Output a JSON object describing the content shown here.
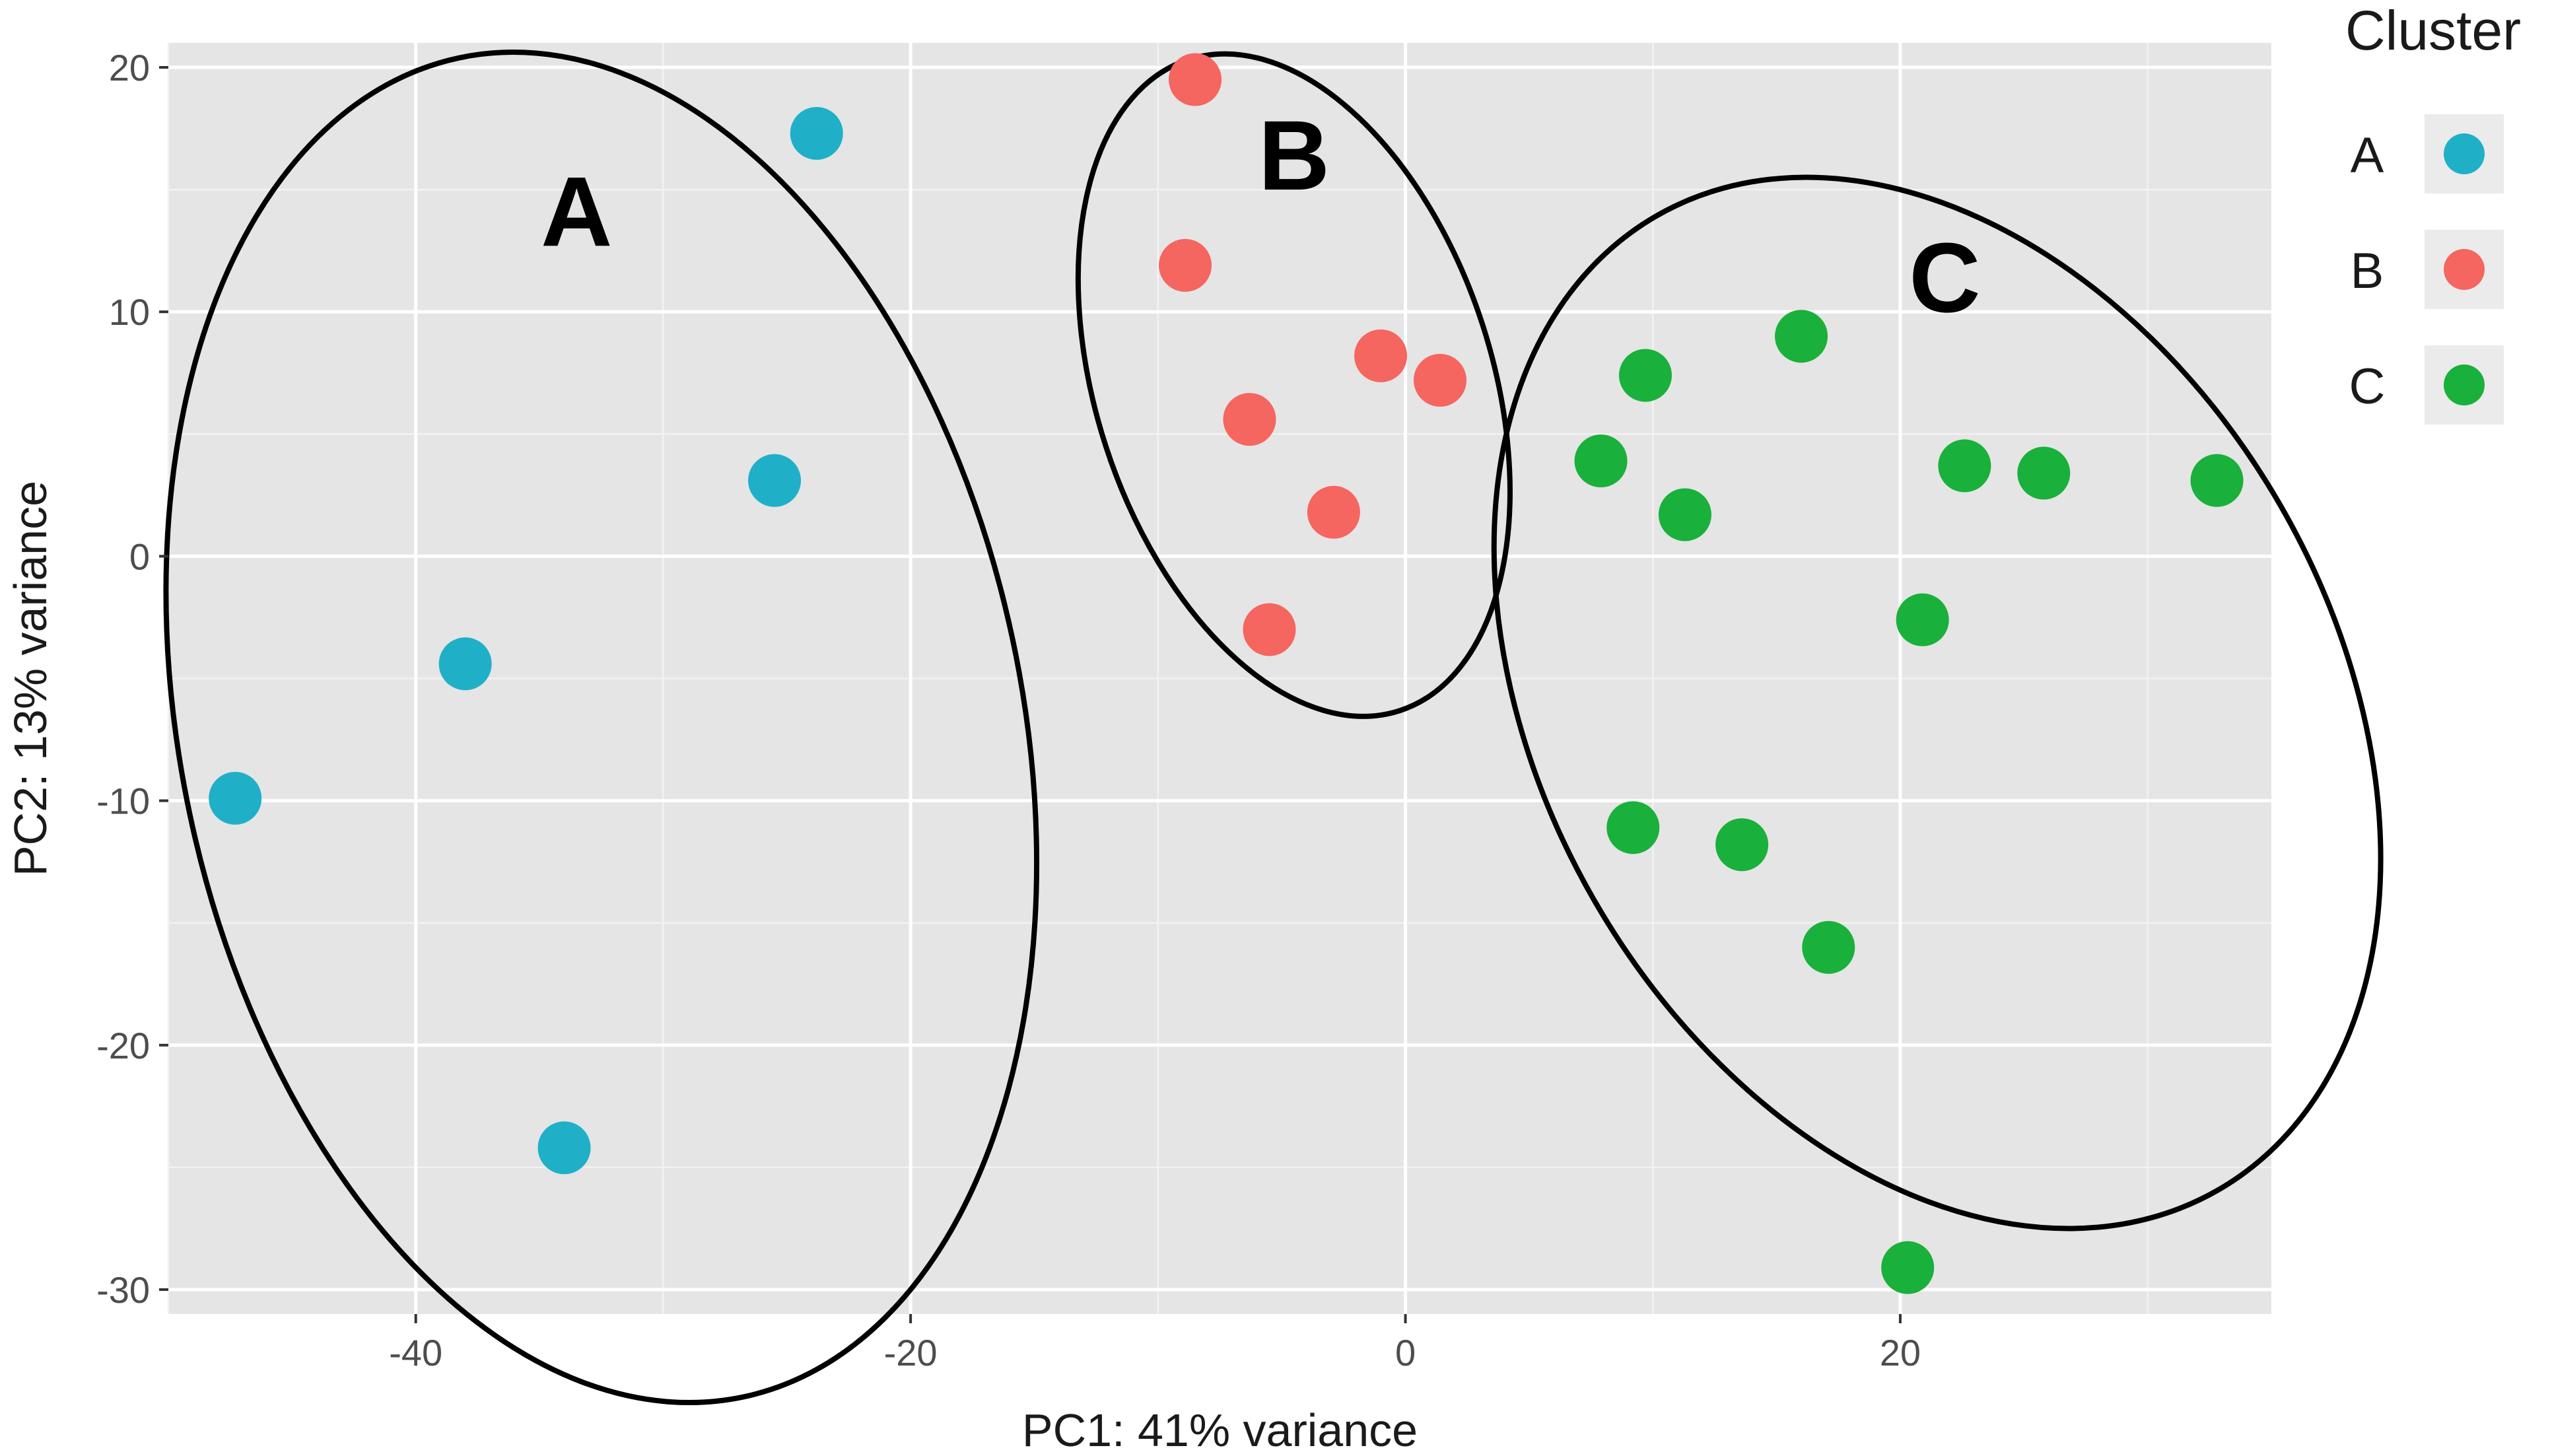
{
  "chart_data": {
    "type": "scatter",
    "title": "",
    "xlabel": "PC1: 41% variance",
    "ylabel": "PC2: 13% variance",
    "xlim": [
      -50,
      35
    ],
    "ylim": [
      -31,
      21
    ],
    "x_ticks": [
      -40,
      -20,
      0,
      20
    ],
    "y_ticks": [
      20,
      10,
      0,
      -10,
      -20,
      -30
    ],
    "grid": true,
    "legend": {
      "title": "Cluster",
      "position": "right",
      "entries": [
        "A",
        "B",
        "C"
      ]
    },
    "series": [
      {
        "name": "A",
        "color": "#1fb0c8",
        "points": [
          {
            "x": -23.8,
            "y": 17.3
          },
          {
            "x": -25.5,
            "y": 3.1
          },
          {
            "x": -38.0,
            "y": -4.4
          },
          {
            "x": -47.3,
            "y": -9.9
          },
          {
            "x": -34.0,
            "y": -24.2
          }
        ]
      },
      {
        "name": "B",
        "color": "#f4665f",
        "points": [
          {
            "x": -8.5,
            "y": 19.5
          },
          {
            "x": -8.9,
            "y": 11.9
          },
          {
            "x": -1.0,
            "y": 8.2
          },
          {
            "x": 1.4,
            "y": 7.2
          },
          {
            "x": -6.3,
            "y": 5.6
          },
          {
            "x": -2.9,
            "y": 1.8
          },
          {
            "x": -5.5,
            "y": -3.0
          }
        ]
      },
      {
        "name": "C",
        "color": "#19b03b",
        "points": [
          {
            "x": 16.0,
            "y": 9.0
          },
          {
            "x": 9.7,
            "y": 7.4
          },
          {
            "x": 7.9,
            "y": 3.9
          },
          {
            "x": 11.3,
            "y": 1.7
          },
          {
            "x": 22.6,
            "y": 3.7
          },
          {
            "x": 25.8,
            "y": 3.4
          },
          {
            "x": 32.8,
            "y": 3.1
          },
          {
            "x": 20.9,
            "y": -2.6
          },
          {
            "x": 9.2,
            "y": -11.1
          },
          {
            "x": 13.6,
            "y": -11.8
          },
          {
            "x": 17.1,
            "y": -16.0
          },
          {
            "x": 20.3,
            "y": -29.1
          }
        ]
      }
    ],
    "annotations": [
      {
        "label": "A",
        "x": -33.5,
        "y": 12.7,
        "type": "cluster-label"
      },
      {
        "label": "B",
        "x": -4.5,
        "y": 15.0,
        "type": "cluster-label"
      },
      {
        "label": "C",
        "x": 21.8,
        "y": 10.0,
        "type": "cluster-label"
      }
    ],
    "ellipses": [
      {
        "cluster": "A",
        "cx": -32.5,
        "cy": -7.0,
        "rx": 17.0,
        "ry": 28.0,
        "rotation_deg": -12
      },
      {
        "cluster": "B",
        "cx": -4.5,
        "cy": 7.0,
        "rx": 8.0,
        "ry": 14.0,
        "rotation_deg": -18
      },
      {
        "cluster": "C",
        "cx": 21.5,
        "cy": -6.0,
        "rx": 16.0,
        "ry": 23.0,
        "rotation_deg": -30
      }
    ]
  }
}
